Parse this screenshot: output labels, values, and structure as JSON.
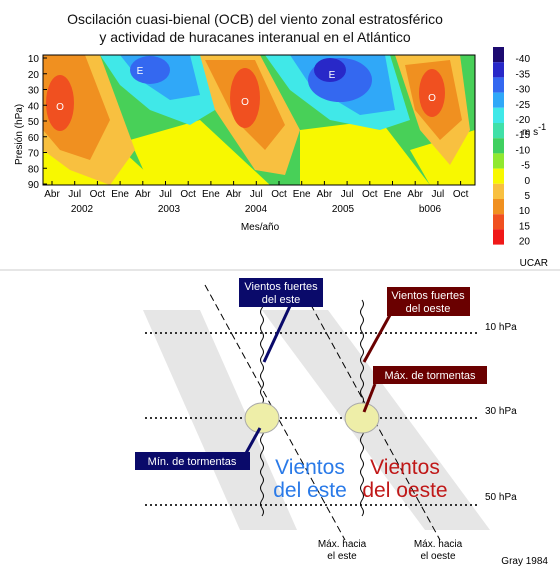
{
  "top": {
    "title_lines": [
      "Oscilación cuasi-bienal (OCB) del viento zonal estratosférico",
      "y actividad de huracanes interanual en el Atlántico"
    ],
    "y_label": "Presión (hPa)",
    "y_ticks": [
      10,
      20,
      30,
      40,
      50,
      60,
      70,
      80,
      90
    ],
    "month_labels": [
      "Abr",
      "Jul",
      "Oct",
      "Ene",
      "Abr",
      "Jul",
      "Oct",
      "Ene",
      "Abr",
      "Jul",
      "Oct",
      "Ene",
      "Abr",
      "Jul",
      "Oct",
      "Ene",
      "Abr",
      "Jul",
      "Oct"
    ],
    "years": [
      "2002",
      "2003",
      "2004",
      "2005",
      "b006"
    ],
    "x_label": "Mes/año",
    "regions": [
      "O",
      "E",
      "O",
      "E",
      "O"
    ],
    "colorbar": {
      "levels": [
        -40,
        -35,
        -30,
        -25,
        -20,
        -15,
        -10,
        -5,
        0,
        5,
        10,
        15,
        20
      ],
      "colors": [
        "#1c0a70",
        "#2828c8",
        "#3468f0",
        "#30a8f8",
        "#40e8e8",
        "#40e0a8",
        "#40d060",
        "#90e830",
        "#f8f800",
        "#f8c040",
        "#f09020",
        "#f05020",
        "#f01818"
      ],
      "unit": "m s",
      "unit_exp": "-1"
    },
    "credit": "UCAR"
  },
  "diagram": {
    "levels": [
      "10 hPa",
      "30 hPa",
      "50 hPa"
    ],
    "strong_east": [
      "Vientos fuertes",
      "del este"
    ],
    "strong_west": [
      "Vientos fuertes",
      "del oeste"
    ],
    "max_storms": "Máx. de tormentas",
    "min_storms": "Mín. de tormentas",
    "east_winds": [
      "Vientos",
      "del este"
    ],
    "west_winds": [
      "Vientos",
      "del oeste"
    ],
    "max_east": [
      "Máx. hacia",
      "el este"
    ],
    "max_west": [
      "Máx. hacia",
      "el oeste"
    ],
    "credit": "Gray 1984"
  }
}
